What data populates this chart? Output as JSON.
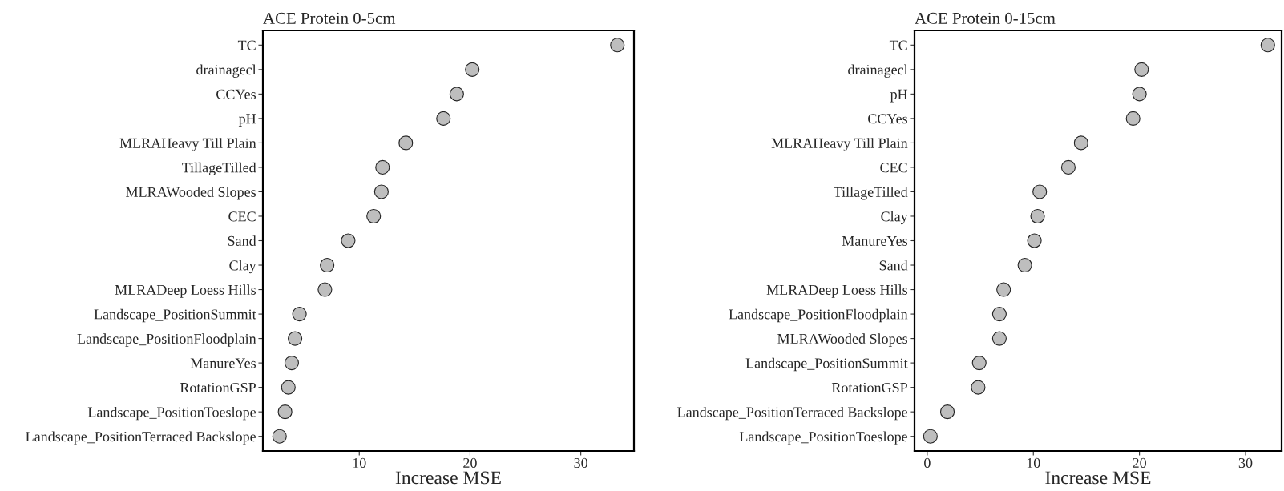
{
  "chart_data": [
    {
      "type": "scatter",
      "title": "ACE Protein 0-5cm",
      "xlabel": "Increase MSE",
      "orientation": "horizontal",
      "marker": "circle",
      "grid": false,
      "legend": false,
      "categories": [
        "TC",
        "drainagecl",
        "CCYes",
        "pH",
        "MLRAHeavy Till Plain",
        "TillageTilled",
        "MLRAWooded Slopes",
        "CEC",
        "Sand",
        "Clay",
        "MLRADeep Loess Hills",
        "Landscape_PositionSummit",
        "Landscape_PositionFloodplain",
        "ManureYes",
        "RotationGSP",
        "Landscape_PositionToeslope",
        "Landscape_PositionTerraced Backslope"
      ],
      "series": [
        {
          "color": "#bebebe",
          "values": [
            33.3,
            20.2,
            18.8,
            17.6,
            14.2,
            12.1,
            12.0,
            11.3,
            9.0,
            7.1,
            6.9,
            4.6,
            4.2,
            3.9,
            3.6,
            3.3,
            2.8
          ]
        }
      ],
      "xlim": [
        1.3,
        34.8
      ],
      "xticks": [
        10,
        20,
        30
      ]
    },
    {
      "type": "scatter",
      "title": "ACE Protein 0-15cm",
      "xlabel": "Increase MSE",
      "orientation": "horizontal",
      "marker": "circle",
      "grid": false,
      "legend": false,
      "categories": [
        "TC",
        "drainagecl",
        "pH",
        "CCYes",
        "MLRAHeavy Till Plain",
        "CEC",
        "TillageTilled",
        "Clay",
        "ManureYes",
        "Sand",
        "MLRADeep Loess Hills",
        "Landscape_PositionFloodplain",
        "MLRAWooded Slopes",
        "Landscape_PositionSummit",
        "RotationGSP",
        "Landscape_PositionTerraced Backslope",
        "Landscape_PositionToeslope"
      ],
      "series": [
        {
          "color": "#bebebe",
          "values": [
            32.1,
            20.2,
            20.0,
            19.4,
            14.5,
            13.3,
            10.6,
            10.4,
            10.1,
            9.2,
            7.2,
            6.8,
            6.8,
            4.9,
            4.8,
            1.9,
            0.3
          ]
        }
      ],
      "xlim": [
        -1.2,
        33.4
      ],
      "xticks": [
        0,
        10,
        20,
        30
      ]
    }
  ]
}
